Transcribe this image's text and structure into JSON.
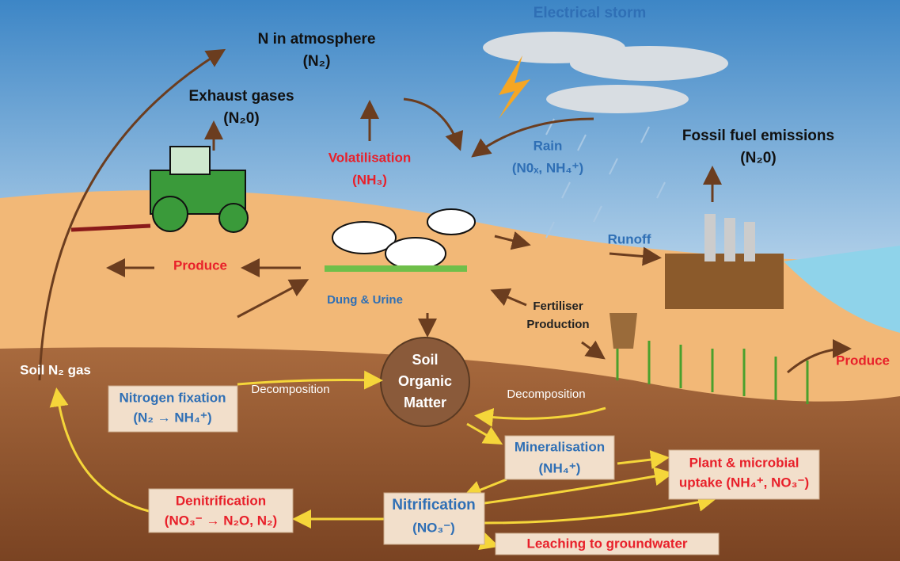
{
  "nodes": [
    {
      "lines": [
        "N in atmosphere",
        "(N₂)"
      ]
    },
    {
      "lines": [
        "Exhaust gases",
        "(N₂0)"
      ]
    },
    {
      "lines": [
        "Electrical storm"
      ]
    },
    {
      "lines": [
        "Volatilisation",
        "(NH₃)"
      ]
    },
    {
      "lines": [
        "Rain",
        "(N0ₓ, NH₄⁺)"
      ]
    },
    {
      "lines": [
        "Fossil fuel emissions",
        "(N₂0)"
      ]
    },
    {
      "lines": [
        "Produce"
      ]
    },
    {
      "lines": [
        "Runoff"
      ]
    },
    {
      "lines": [
        "Dung & Urine"
      ]
    },
    {
      "lines": [
        "Fertiliser",
        "Production"
      ]
    },
    {
      "lines": [
        "Produce"
      ]
    },
    {
      "lines": [
        "Soil N₂ gas"
      ]
    },
    {
      "lines": [
        "Nitrogen fixation",
        "(N₂ → NH₄⁺)"
      ]
    },
    {
      "lines": [
        "Decomposition"
      ]
    },
    {
      "lines": [
        "Soil",
        "Organic",
        "Matter"
      ]
    },
    {
      "lines": [
        "Decomposition"
      ]
    },
    {
      "lines": [
        "Mineralisation",
        "(NH₄⁺)"
      ]
    },
    {
      "lines": [
        "Plant & microbial",
        "uptake (NH₄⁺, NO₃⁻)"
      ]
    },
    {
      "lines": [
        "Denitrification",
        "(NO₃⁻ → N₂O, N₂)"
      ]
    },
    {
      "lines": [
        "Nitrification",
        "(NO₃⁻)"
      ]
    },
    {
      "lines": [
        "Leaching to groundwater"
      ]
    }
  ]
}
